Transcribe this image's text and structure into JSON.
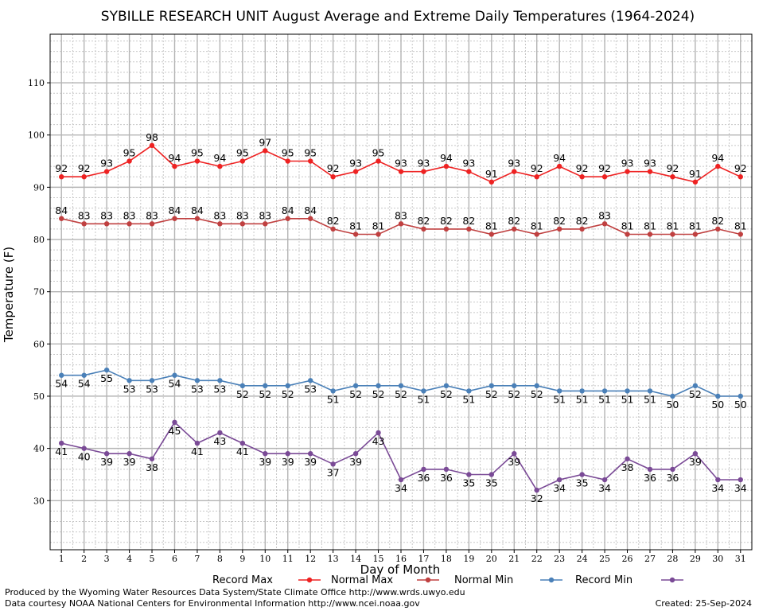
{
  "chart_data": {
    "type": "line",
    "title": "SYBILLE RESEARCH UNIT August Average and Extreme Daily Temperatures (1964-2024)",
    "xlabel": "Day of Month",
    "ylabel": "Temperature (F)",
    "x": [
      1,
      2,
      3,
      4,
      5,
      6,
      7,
      8,
      9,
      10,
      11,
      12,
      13,
      14,
      15,
      16,
      17,
      18,
      19,
      20,
      21,
      22,
      23,
      24,
      25,
      26,
      27,
      28,
      29,
      30,
      31
    ],
    "xlim": [
      0.5,
      31.5
    ],
    "ylim": [
      20.6,
      119.3
    ],
    "yticks": [
      30,
      40,
      50,
      60,
      70,
      80,
      90,
      100,
      110
    ],
    "grid": true,
    "legend_position": "bottom",
    "series": [
      {
        "name": "Record Max",
        "color": "#ee2222",
        "label_pos": "above",
        "values": [
          92,
          92,
          93,
          95,
          98,
          94,
          95,
          94,
          95,
          97,
          95,
          95,
          92,
          93,
          95,
          93,
          93,
          94,
          93,
          91,
          93,
          92,
          94,
          92,
          92,
          93,
          93,
          92,
          91,
          94,
          92
        ]
      },
      {
        "name": "Normal Max",
        "color": "#c04040",
        "label_pos": "above",
        "values": [
          84,
          83,
          83,
          83,
          83,
          84,
          84,
          83,
          83,
          83,
          84,
          84,
          82,
          81,
          81,
          83,
          82,
          82,
          82,
          81,
          82,
          81,
          82,
          82,
          83,
          81,
          81,
          81,
          81,
          82,
          81
        ]
      },
      {
        "name": "Normal Min",
        "color": "#4a80b8",
        "label_pos": "below",
        "values": [
          54,
          54,
          55,
          53,
          53,
          54,
          53,
          53,
          52,
          52,
          52,
          53,
          51,
          52,
          52,
          52,
          51,
          52,
          51,
          52,
          52,
          52,
          51,
          51,
          51,
          51,
          51,
          50,
          52,
          50,
          50
        ]
      },
      {
        "name": "Record Min",
        "color": "#7a4a96",
        "label_pos": "below",
        "values": [
          41,
          40,
          39,
          39,
          38,
          45,
          41,
          43,
          41,
          39,
          39,
          39,
          37,
          39,
          43,
          34,
          36,
          36,
          35,
          35,
          39,
          32,
          34,
          35,
          34,
          38,
          36,
          36,
          39,
          34,
          34
        ]
      }
    ]
  },
  "footer": {
    "produced_by": "Produced by the Wyoming Water Resources Data System/State Climate Office http://www.wrds.uwyo.edu",
    "data_courtesy": "Data courtesy NOAA National Centers for Environmental Information http://www.ncei.noaa.gov",
    "created": "Created:  25-Sep-2024"
  }
}
